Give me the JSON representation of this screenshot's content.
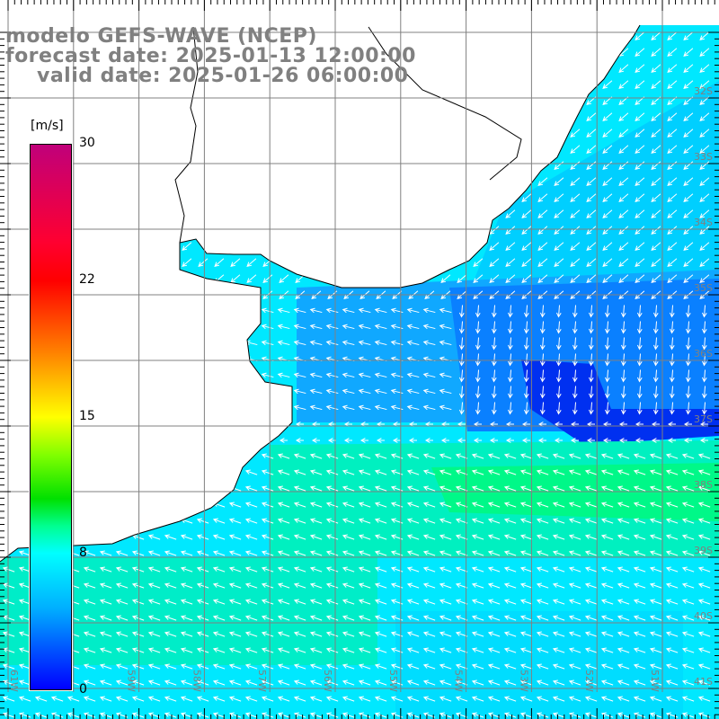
{
  "title": {
    "model": "modelo GEFS-WAVE (NCEP)",
    "forecast": "forecast date: 2025-01-13 12:00:00",
    "valid": "valid date: 2025-01-26 06:00:00"
  },
  "colorbar": {
    "unit": "[m/s]",
    "ticks": [
      "30",
      "22",
      "15",
      "8",
      "0"
    ],
    "colors": [
      "#c0007a",
      "#ff0000",
      "#ffff00",
      "#00ffff",
      "#0000ff"
    ]
  },
  "lat_labels": [
    "32S",
    "33S",
    "34S",
    "35S",
    "36S",
    "37S",
    "38S",
    "39S",
    "40S",
    "41S"
  ],
  "lon_labels": [
    "61W",
    "60W",
    "59W",
    "58W",
    "57W",
    "56W",
    "55W",
    "54W",
    "53W",
    "52W",
    "51W"
  ],
  "colors": {
    "ocean_base": "#00e8ff",
    "wind_blue": "#0a90ff",
    "wind_dark": "#0030f0",
    "wind_green": "#00f890",
    "grid": "#808080",
    "label": "#808080"
  }
}
